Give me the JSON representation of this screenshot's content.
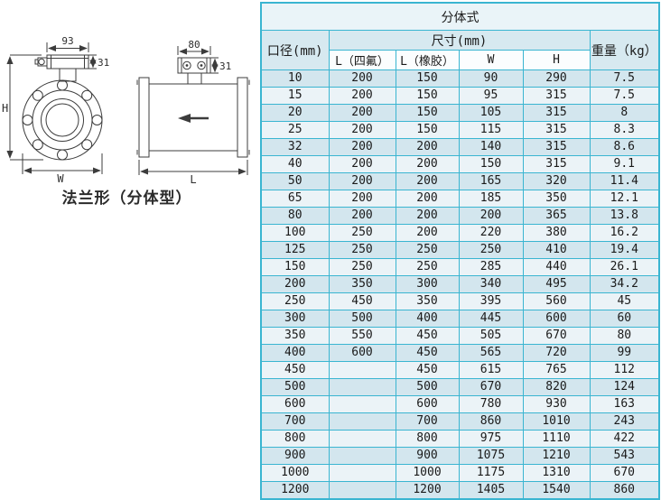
{
  "diagram": {
    "caption": "法兰形（分体型）",
    "front_view": {
      "box_width": "93",
      "box_height": "31",
      "height_label": "H",
      "width_label": "W"
    },
    "side_view": {
      "box_width": "80",
      "box_height": "31",
      "length_label": "L"
    }
  },
  "table": {
    "title": "分体式",
    "columns": {
      "diameter": "口径(mm)",
      "size_group": "尺寸(mm)",
      "l_ptfe": "L（四氟）",
      "l_rubber": "L（橡胶）",
      "w": "W",
      "h": "H",
      "weight": "重量（kg）"
    },
    "rows": [
      [
        "10",
        "200",
        "150",
        "90",
        "290",
        "7.5"
      ],
      [
        "15",
        "200",
        "150",
        "95",
        "315",
        "7.5"
      ],
      [
        "20",
        "200",
        "150",
        "105",
        "315",
        "8"
      ],
      [
        "25",
        "200",
        "150",
        "115",
        "315",
        "8.3"
      ],
      [
        "32",
        "200",
        "200",
        "140",
        "315",
        "8.6"
      ],
      [
        "40",
        "200",
        "200",
        "150",
        "315",
        "9.1"
      ],
      [
        "50",
        "200",
        "200",
        "165",
        "320",
        "11.4"
      ],
      [
        "65",
        "200",
        "200",
        "185",
        "350",
        "12.1"
      ],
      [
        "80",
        "200",
        "200",
        "200",
        "365",
        "13.8"
      ],
      [
        "100",
        "250",
        "200",
        "220",
        "380",
        "16.2"
      ],
      [
        "125",
        "250",
        "250",
        "250",
        "410",
        "19.4"
      ],
      [
        "150",
        "250",
        "250",
        "285",
        "440",
        "26.1"
      ],
      [
        "200",
        "350",
        "300",
        "340",
        "495",
        "34.2"
      ],
      [
        "250",
        "450",
        "350",
        "395",
        "560",
        "45"
      ],
      [
        "300",
        "500",
        "400",
        "445",
        "600",
        "60"
      ],
      [
        "350",
        "550",
        "450",
        "505",
        "670",
        "80"
      ],
      [
        "400",
        "600",
        "450",
        "565",
        "720",
        "99"
      ],
      [
        "450",
        "",
        "450",
        "615",
        "765",
        "112"
      ],
      [
        "500",
        "",
        "500",
        "670",
        "820",
        "124"
      ],
      [
        "600",
        "",
        "600",
        "780",
        "930",
        "163"
      ],
      [
        "700",
        "",
        "700",
        "860",
        "1010",
        "243"
      ],
      [
        "800",
        "",
        "800",
        "975",
        "1110",
        "422"
      ],
      [
        "900",
        "",
        "900",
        "1075",
        "1210",
        "543"
      ],
      [
        "1000",
        "",
        "1000",
        "1175",
        "1310",
        "670"
      ],
      [
        "1200",
        "",
        "1200",
        "1405",
        "1540",
        "860"
      ]
    ]
  },
  "colors": {
    "table_border": "#3ab5d1",
    "title_bg": "#eaf4f8",
    "header_bg": "#d7e9f0",
    "subheader_bg": "#fbfdfe",
    "row_dark": "#d3e6ee",
    "row_light": "#ebf3f7",
    "text": "#1a1a1a",
    "line": "#3c3c3c"
  }
}
